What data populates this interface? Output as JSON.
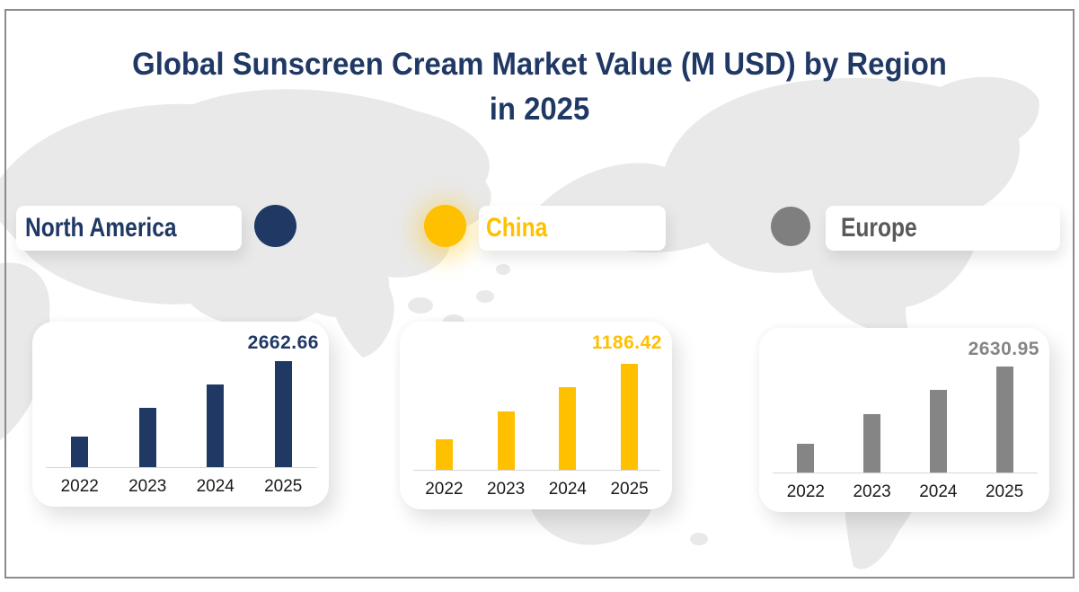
{
  "title": {
    "line1": "Global Sunscreen Cream Market Value (M USD) by Region",
    "line2": "in 2025",
    "full": "Global Sunscreen Cream Market Value (M USD) by Region in 2025",
    "color": "#1F3864"
  },
  "legend": [
    {
      "label": "North America",
      "text_color": "#1F3864",
      "marker_color": "#1F3864"
    },
    {
      "label": "China",
      "text_color": "#FFC000",
      "marker_color": "#FFC000"
    },
    {
      "label": "Europe",
      "text_color": "#595959",
      "marker_color": "#7F7F7F"
    }
  ],
  "chart_data": [
    {
      "type": "bar",
      "region": "North America",
      "categories": [
        "2022",
        "2023",
        "2024",
        "2025"
      ],
      "values": [
        770,
        1490,
        2075,
        2662.66
      ],
      "data_labels": [
        "",
        "",
        "",
        "2662.66"
      ],
      "data_label_2025": "2662.66",
      "color": "#1F3864",
      "ylim": [
        0,
        2800
      ],
      "grid": false,
      "xlabel": "",
      "ylabel": ""
    },
    {
      "type": "bar",
      "region": "China",
      "categories": [
        "2022",
        "2023",
        "2024",
        "2025"
      ],
      "values": [
        340,
        655,
        925,
        1186.42
      ],
      "data_labels": [
        "",
        "",
        "",
        "1186.42"
      ],
      "data_label_2025": "1186.42",
      "color": "#FFC000",
      "ylim": [
        0,
        1250
      ],
      "grid": false,
      "xlabel": "",
      "ylabel": ""
    },
    {
      "type": "bar",
      "region": "Europe",
      "categories": [
        "2022",
        "2023",
        "2024",
        "2025"
      ],
      "values": [
        720,
        1460,
        2045,
        2630.95
      ],
      "data_labels": [
        "",
        "",
        "",
        "2630.95"
      ],
      "data_label_2025": "2630.95",
      "color": "#858585",
      "ylim": [
        0,
        2800
      ],
      "grid": false,
      "xlabel": "",
      "ylabel": ""
    }
  ],
  "styles": {
    "background": "#FFFFFF",
    "border_color": "#8C8C8C",
    "map_color": "#E9E9E9",
    "axis_line_color": "#D6D6D6",
    "year_label_color": "#1A1A1A"
  }
}
